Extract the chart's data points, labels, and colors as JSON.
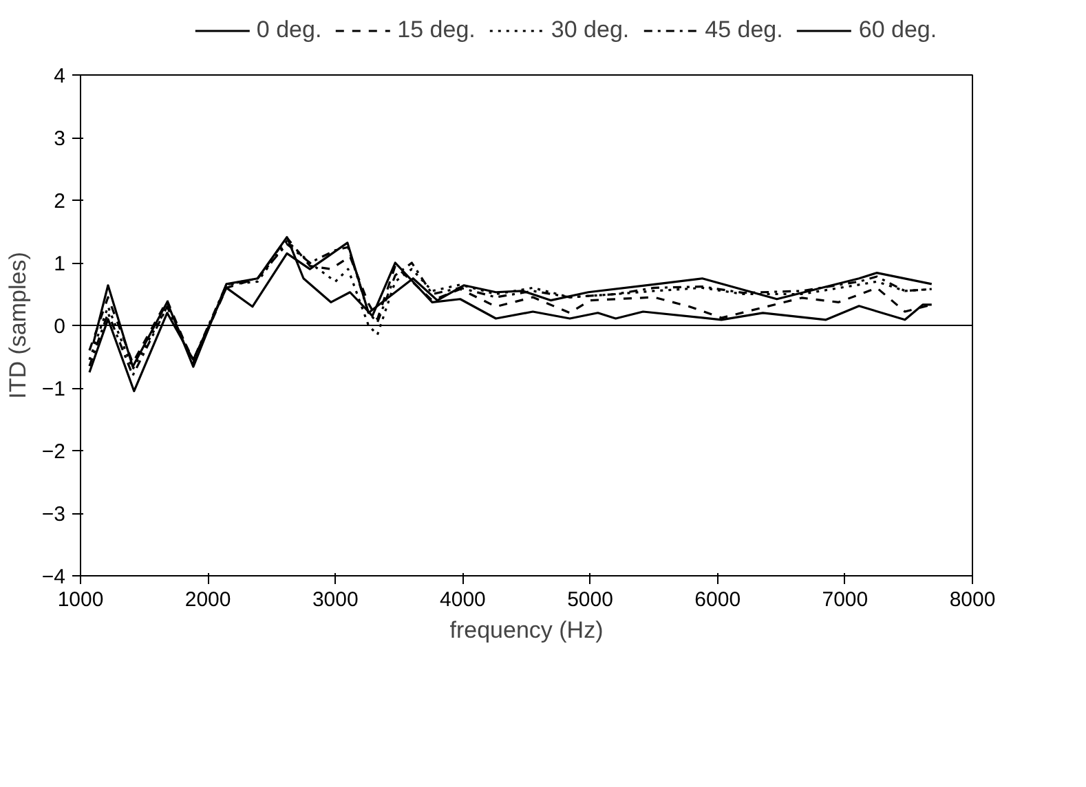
{
  "chart_data": {
    "type": "line",
    "xlabel": "frequency (Hz)",
    "ylabel": "ITD (samples)",
    "xlim": [
      1000,
      8000
    ],
    "xticks": [
      1000,
      2000,
      3000,
      4000,
      5000,
      6000,
      7000,
      8000
    ],
    "ylim": [
      -4,
      4
    ],
    "yticks": [
      -4,
      -3,
      -2,
      -1,
      0,
      1,
      2,
      3,
      4
    ],
    "grid": false,
    "legend": "top",
    "marker": "none",
    "ref_lines": [
      {
        "axis": "y",
        "value": 0,
        "color": "#000000",
        "line_style": "solid"
      }
    ],
    "series": [
      {
        "name": "0 deg.",
        "color": "#000000",
        "line_style": "solid",
        "x": [
          1100,
          1216,
          1410,
          1680,
          1885,
          2145,
          2390,
          2620,
          2750,
          2965,
          3115,
          3260,
          3290,
          3470,
          3760,
          3980,
          4260,
          4550,
          4840,
          5060,
          5200,
          5415,
          6030,
          6355,
          6850,
          7110,
          7470,
          7610,
          7680
        ],
        "values": [
          -0.29,
          0.64,
          -0.66,
          0.37,
          -0.66,
          0.66,
          0.75,
          1.41,
          0.75,
          0.37,
          0.53,
          0.22,
          0.15,
          1.0,
          0.37,
          0.42,
          0.11,
          0.22,
          0.11,
          0.2,
          0.11,
          0.22,
          0.09,
          0.2,
          0.09,
          0.31,
          0.09,
          0.33,
          0.33
        ]
      },
      {
        "name": "15 deg.",
        "color": "#000000",
        "line_style": "dashed",
        "x": [
          1070,
          1216,
          1410,
          1680,
          1885,
          2145,
          2390,
          2620,
          2800,
          2965,
          3115,
          3260,
          3330,
          3470,
          3760,
          3980,
          4260,
          4550,
          4840,
          5000,
          5500,
          5780,
          6030,
          6660,
          6950,
          7250,
          7470,
          7680
        ],
        "values": [
          -0.4,
          0.45,
          -0.6,
          0.4,
          -0.6,
          0.6,
          0.75,
          1.4,
          0.95,
          0.9,
          1.1,
          0.35,
          0.1,
          0.95,
          0.4,
          0.58,
          0.3,
          0.45,
          0.2,
          0.4,
          0.45,
          0.3,
          0.12,
          0.44,
          0.37,
          0.6,
          0.22,
          0.33
        ]
      },
      {
        "name": "30 deg.",
        "color": "#000000",
        "line_style": "dotted",
        "x": [
          1070,
          1216,
          1410,
          1680,
          1885,
          2145,
          2390,
          2620,
          2800,
          3000,
          3100,
          3260,
          3330,
          3470,
          3600,
          3760,
          3980,
          4260,
          4550,
          4840,
          5200,
          5500,
          5880,
          6200,
          6660,
          7110,
          7250,
          7470,
          7680
        ],
        "values": [
          -0.55,
          0.3,
          -0.7,
          0.3,
          -0.6,
          0.65,
          0.7,
          1.35,
          1.0,
          0.7,
          0.9,
          0.0,
          -0.15,
          0.7,
          0.9,
          0.55,
          0.65,
          0.5,
          0.6,
          0.45,
          0.5,
          0.55,
          0.6,
          0.5,
          0.5,
          0.65,
          0.7,
          0.55,
          0.58
        ]
      },
      {
        "name": "45 deg.",
        "color": "#000000",
        "line_style": "dashdot",
        "x": [
          1070,
          1216,
          1410,
          1680,
          1885,
          2145,
          2390,
          2620,
          2800,
          3000,
          3100,
          3260,
          3330,
          3470,
          3600,
          3760,
          3980,
          4260,
          4550,
          4840,
          5200,
          5500,
          5880,
          6200,
          6660,
          7110,
          7250,
          7470,
          7680
        ],
        "values": [
          -0.65,
          0.2,
          -0.8,
          0.3,
          -0.55,
          0.65,
          0.75,
          1.3,
          1.0,
          1.2,
          1.25,
          0.2,
          0.05,
          0.8,
          1.0,
          0.5,
          0.6,
          0.45,
          0.55,
          0.45,
          0.5,
          0.6,
          0.62,
          0.52,
          0.55,
          0.7,
          0.78,
          0.55,
          0.58
        ]
      },
      {
        "name": "60 deg.",
        "color": "#000000",
        "line_style": "solid",
        "x": [
          1070,
          1216,
          1420,
          1680,
          1885,
          2145,
          2350,
          2620,
          2800,
          3095,
          3260,
          3400,
          3610,
          3800,
          4010,
          4260,
          4470,
          4690,
          4985,
          5525,
          5880,
          6465,
          7110,
          7250,
          7680
        ],
        "values": [
          -0.75,
          0.1,
          -1.05,
          0.2,
          -0.55,
          0.6,
          0.3,
          1.15,
          0.9,
          1.32,
          0.2,
          0.42,
          0.75,
          0.4,
          0.64,
          0.53,
          0.55,
          0.4,
          0.53,
          0.66,
          0.75,
          0.42,
          0.75,
          0.84,
          0.66
        ]
      }
    ]
  }
}
